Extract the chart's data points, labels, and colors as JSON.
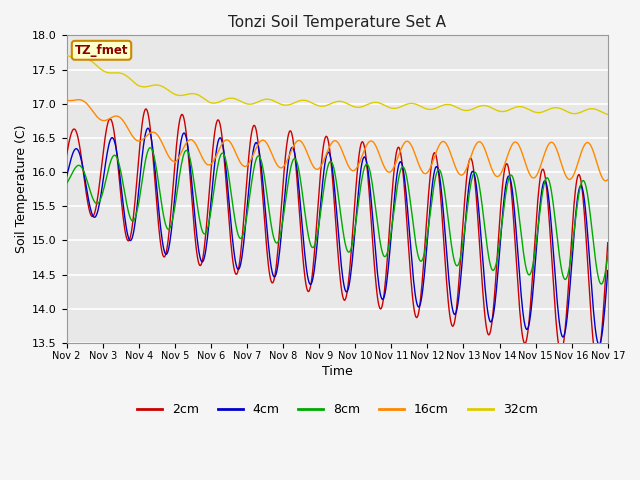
{
  "title": "Tonzi Soil Temperature Set A",
  "xlabel": "Time",
  "ylabel": "Soil Temperature (C)",
  "ylim": [
    13.5,
    18.0
  ],
  "yticks": [
    13.5,
    14.0,
    14.5,
    15.0,
    15.5,
    16.0,
    16.5,
    17.0,
    17.5,
    18.0
  ],
  "fig_bg": "#f5f5f5",
  "plot_bg": "#e8e8e8",
  "grid_color": "#ffffff",
  "line_colors": {
    "2cm": "#cc0000",
    "4cm": "#0000cc",
    "8cm": "#00aa00",
    "16cm": "#ff8800",
    "32cm": "#ddcc00"
  },
  "legend_labels": [
    "2cm",
    "4cm",
    "8cm",
    "16cm",
    "32cm"
  ],
  "annotation": "TZ_fmet",
  "annotation_color": "#8b0000",
  "annotation_bg": "#ffffcc",
  "annotation_border": "#cc8800",
  "n_days": 15,
  "start_day": 2,
  "pts_per_day": 48
}
